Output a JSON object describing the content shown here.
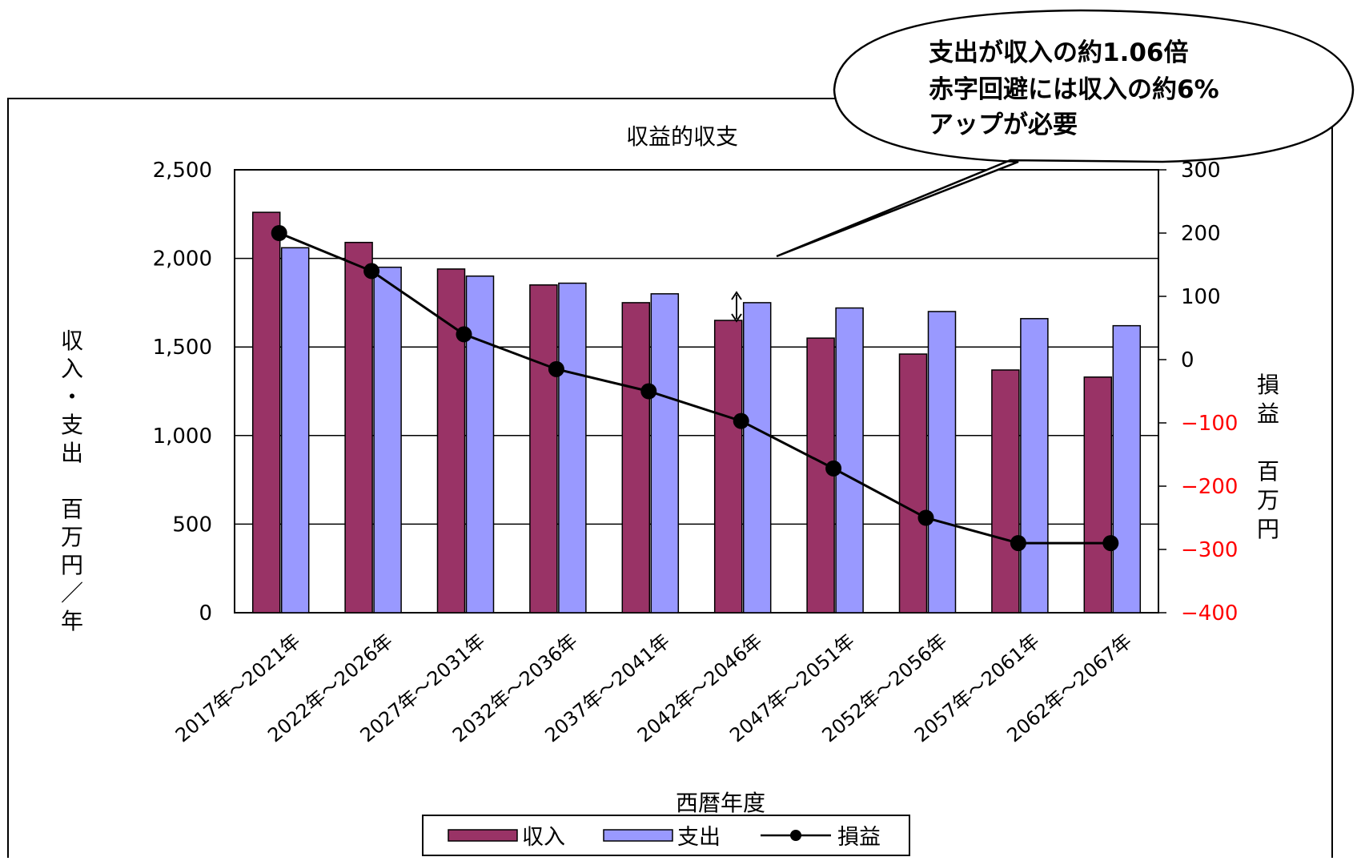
{
  "chart_data": {
    "type": "bar+line",
    "title": "収益的収支",
    "xlabel": "西暦年度",
    "ylabel_left": "収入・支出　百万円／年",
    "ylabel_right": "損益　百万円",
    "categories": [
      "2017年～2021年",
      "2022年～2026年",
      "2027年～2031年",
      "2032年～2036年",
      "2037年～2041年",
      "2042年～2046年",
      "2047年～2051年",
      "2052年～2056年",
      "2057年～2061年",
      "2062年～2067年"
    ],
    "left_axis": {
      "min": 0,
      "max": 2500,
      "ticks": [
        "0",
        "500",
        "1,000",
        "1,500",
        "2,000",
        "2,500"
      ],
      "tick_values": [
        0,
        500,
        1000,
        1500,
        2000,
        2500
      ]
    },
    "right_axis": {
      "min": -400,
      "max": 300,
      "ticks": [
        "−400",
        "−300",
        "−200",
        "−100",
        "0",
        "100",
        "200",
        "300"
      ],
      "tick_values": [
        -400,
        -300,
        -200,
        -100,
        0,
        100,
        200,
        300
      ]
    },
    "series": [
      {
        "name": "収入",
        "type": "bar",
        "axis": "left",
        "color": "#993366",
        "values": [
          2260,
          2090,
          1940,
          1850,
          1750,
          1650,
          1550,
          1460,
          1370,
          1330
        ]
      },
      {
        "name": "支出",
        "type": "bar",
        "axis": "left",
        "color": "#9999ff",
        "values": [
          2060,
          1950,
          1900,
          1860,
          1800,
          1750,
          1720,
          1700,
          1660,
          1620
        ]
      },
      {
        "name": "損益",
        "type": "line",
        "axis": "right",
        "color": "#000000",
        "values": [
          200,
          140,
          40,
          -15,
          -50,
          -97,
          -172,
          -250,
          -290,
          -290
        ]
      }
    ],
    "legend": {
      "position": "bottom",
      "items": [
        "収入",
        "支出",
        "損益"
      ]
    },
    "grid": true,
    "annotation": {
      "lines": [
        "支出が収入の約1.06倍",
        "赤字回避には収入の約6%",
        "アップが必要"
      ]
    },
    "colors": {
      "negative_tick": "#ff0000",
      "positive_tick": "#000000"
    }
  }
}
